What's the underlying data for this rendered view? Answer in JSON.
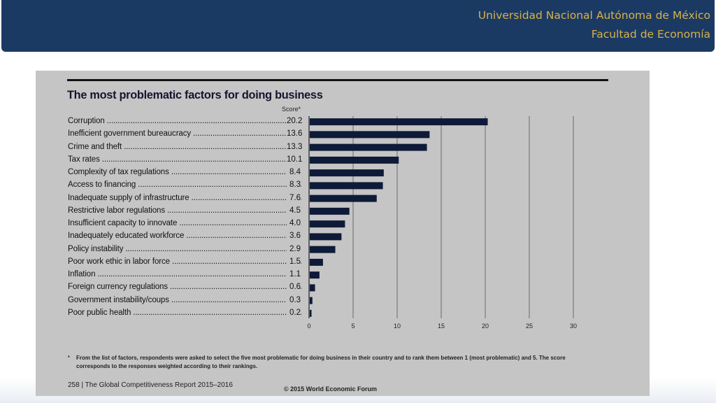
{
  "header": {
    "line1": "Universidad Nacional Autónoma de México",
    "line2": "Facultad de Economía"
  },
  "slide": {
    "footnote_mark": "*",
    "footnote": "From the list of factors, respondents were asked to select the five most problematic for doing business in their country and to rank them between 1 (most problematic) and 5. The score corresponds to the responses weighted according to their rankings.",
    "page_ref": "258  |  The Global Competitiveness Report 2015–2016",
    "copyright": "© 2015 World Economic Forum"
  },
  "colors": {
    "bar": "#0e1a38",
    "header_bg": "#1b3a63",
    "header_text": "#d8b24a",
    "panel_bg": "#c5c5c5"
  },
  "chart_data": {
    "type": "bar",
    "orientation": "horizontal",
    "title": "The most problematic factors for doing business",
    "xlabel": "Score*",
    "xlim": [
      0,
      30
    ],
    "xticks": [
      "0",
      "5",
      "10",
      "15",
      "20",
      "25",
      "30"
    ],
    "grid": true,
    "categories": [
      "Corruption",
      "Inefficient government bureaucracy",
      "Crime and theft",
      "Tax rates",
      "Complexity of tax regulations",
      "Access to financing",
      "Inadequate supply of infrastructure",
      "Restrictive labor regulations",
      "Insufficient capacity to innovate",
      "Inadequately educated workforce",
      "Policy instability",
      "Poor work ethic in labor force",
      "Inflation",
      "Foreign currency regulations",
      "Government instability/coups",
      "Poor public health"
    ],
    "values": [
      20.2,
      13.6,
      13.3,
      10.1,
      8.4,
      8.3,
      7.6,
      4.5,
      4.0,
      3.6,
      2.9,
      1.5,
      1.1,
      0.6,
      0.3,
      0.2
    ],
    "value_labels": [
      "20.2",
      "13.6",
      "13.3",
      "10.1",
      "8.4",
      "8.3",
      "7.6",
      "4.5",
      "4.0",
      "3.6",
      "2.9",
      "1.5",
      "1.1",
      "0.6",
      "0.3",
      "0.2"
    ]
  }
}
